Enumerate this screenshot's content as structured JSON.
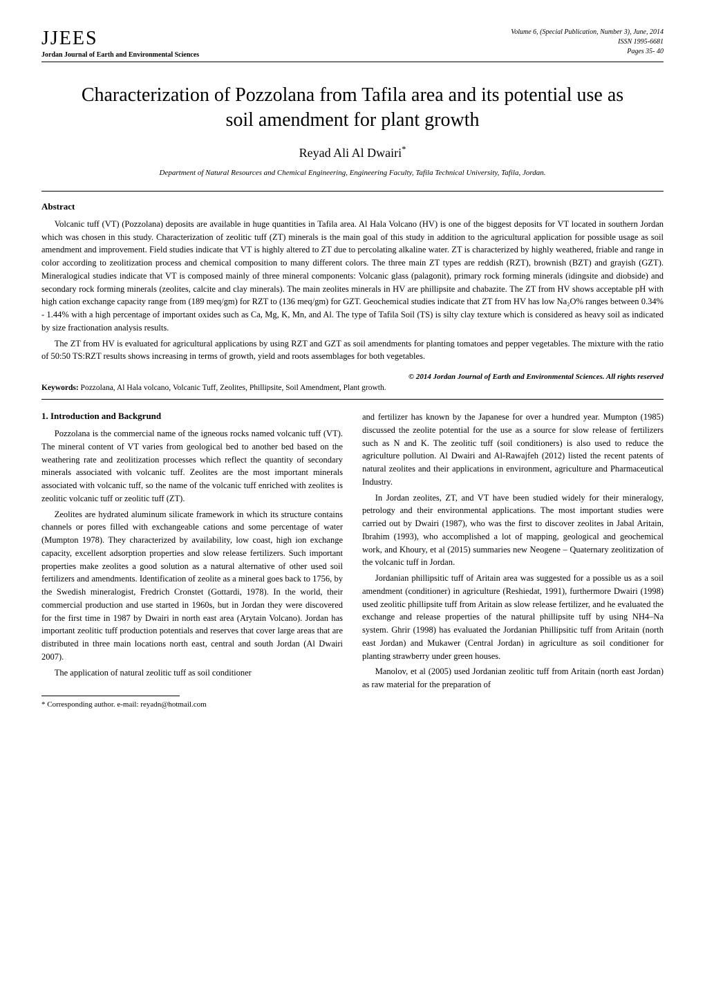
{
  "header": {
    "logo": "JJEES",
    "subtitle": "Jordan Journal of Earth and Environmental Sciences",
    "meta": {
      "volume": "Volume 6, (Special Publication, Number 3), June, 2014",
      "issn": "ISSN 1995-6681",
      "pages": "Pages 35- 40"
    }
  },
  "title": "Characterization of Pozzolana from Tafila area and its potential use as soil amendment for plant growth",
  "author": "Reyad Ali Al Dwairi",
  "author_marker": "*",
  "affiliation": "Department of Natural Resources and Chemical Engineering, Engineering Faculty, Tafila Technical University, Tafila, Jordan.",
  "abstract": {
    "heading": "Abstract",
    "paragraphs": [
      "Volcanic tuff (VT) (Pozzolana) deposits are available in huge quantities in Tafila area. Al Hala Volcano (HV) is one of the biggest deposits for VT located in southern Jordan which was chosen in this study. Characterization of zeolitic tuff (ZT) minerals is the main goal of this study in addition to the agricultural application for possible usage as soil amendment and improvement. Field studies indicate that VT is highly altered to ZT due to percolating alkaline water. ZT is characterized by highly weathered, friable and range in color according to zeolitization process and chemical composition to many different colors. The three main ZT types are reddish (RZT), brownish (BZT) and grayish (GZT). Mineralogical studies indicate that VT is composed mainly of three mineral components: Volcanic glass (palagonit), primary rock forming minerals (idingsite and diobside) and secondary rock forming minerals (zeolites, calcite and clay minerals). The main zeolites minerals in HV are phillipsite and chabazite. The ZT from HV shows acceptable pH with high cation exchange capacity range from (189 meq/gm) for RZT to (136 meq/gm) for GZT. Geochemical studies indicate that ZT from HV has low Na₂O% ranges between 0.34% - 1.44% with a high percentage of important oxides such as Ca, Mg, K, Mn, and Al. The type of Tafila Soil (TS) is silty clay texture which is considered as heavy soil as indicated by size fractionation analysis results.",
      "The ZT from HV is evaluated for agricultural applications by using RZT and GZT as soil amendments for planting tomatoes and pepper vegetables. The mixture with the ratio of 50:50 TS:RZT results shows increasing in terms of growth, yield and roots assemblages for both vegetables."
    ]
  },
  "copyright": "© 2014 Jordan Journal of Earth and Environmental Sciences. All rights reserved",
  "keywords": {
    "label": "Keywords:",
    "text": " Pozzolana, Al Hala volcano, Volcanic Tuff, Zeolites, Phillipsite, Soil Amendment, Plant growth."
  },
  "body": {
    "section_heading": "1. Introduction and Backgrund",
    "left_paragraphs": [
      "Pozzolana is the commercial name of the igneous rocks named volcanic tuff (VT). The mineral content of VT varies from geological bed to another bed based on the weathering rate and zeolitization processes which reflect the quantity of secondary minerals associated with volcanic tuff. Zeolites are the most important minerals associated with volcanic tuff, so the name of the volcanic tuff enriched with zeolites is zeolitic volcanic tuff or zeolitic tuff (ZT).",
      "Zeolites are hydrated aluminum silicate framework in which its structure contains channels or pores filled with exchangeable cations and some percentage of water (Mumpton 1978). They characterized by availability, low coast, high ion exchange capacity, excellent adsorption properties and slow release fertilizers. Such important properties make zeolites a good solution as a natural alternative of other used soil fertilizers and amendments. Identification of zeolite as a mineral goes back to 1756, by the Swedish mineralogist, Fredrich Cronstet (Gottardi, 1978). In the world, their commercial production and use started in 1960s, but in Jordan they were discovered for the first time in 1987 by Dwairi in north east area (Arytain Volcano). Jordan has important zeolitic tuff production potentials and reserves that cover large areas that are distributed in three main locations north east, central and south Jordan (Al Dwairi 2007).",
      "The application of natural zeolitic tuff as soil conditioner"
    ],
    "right_paragraphs": [
      "and fertilizer has known by the Japanese for over a hundred year. Mumpton (1985) discussed the zeolite potential for the use as a source for slow release of fertilizers such as N and K. The zeolitic tuff (soil conditioners) is also used to reduce the agriculture pollution. Al Dwairi and Al-Rawajfeh (2012) listed the recent patents of natural zeolites and their applications in environment, agriculture and Pharmaceutical Industry.",
      "In Jordan zeolites, ZT, and VT have been studied widely for their mineralogy, petrology and their environmental applications. The most important studies were carried out by Dwairi (1987), who was the first to discover zeolites in Jabal Aritain, Ibrahim (1993), who accomplished a lot of mapping, geological and geochemical work, and Khoury, et al (2015) summaries new Neogene – Quaternary zeolitization of the volcanic tuff in Jordan.",
      "Jordanian phillipsitic tuff of Aritain area was suggested for a possible us as a soil amendment (conditioner) in agriculture (Reshiedat, 1991), furthermore Dwairi (1998) used zeolitic phillipsite tuff from Aritain as slow release fertilizer, and he evaluated the exchange and release properties of the natural phillipsite tuff by using NH4–Na system. Ghrir (1998) has evaluated the Jordanian Phillipsitic tuff from Aritain (north east Jordan) and Mukawer (Central Jordan) in agriculture as soil conditioner for planting strawberry under green houses.",
      "Manolov, et al (2005) used Jordanian zeolitic tuff from Aritain (north east Jordan) as raw material for the preparation of"
    ]
  },
  "footnote": "* Corresponding author. e-mail: reyadn@hotmail.com",
  "colors": {
    "text": "#000000",
    "background": "#ffffff",
    "rule": "#000000"
  },
  "typography": {
    "title_fontsize": 28,
    "author_fontsize": 18,
    "body_fontsize": 12.5,
    "meta_fontsize": 10,
    "font_family": "Georgia, Times New Roman, serif"
  }
}
